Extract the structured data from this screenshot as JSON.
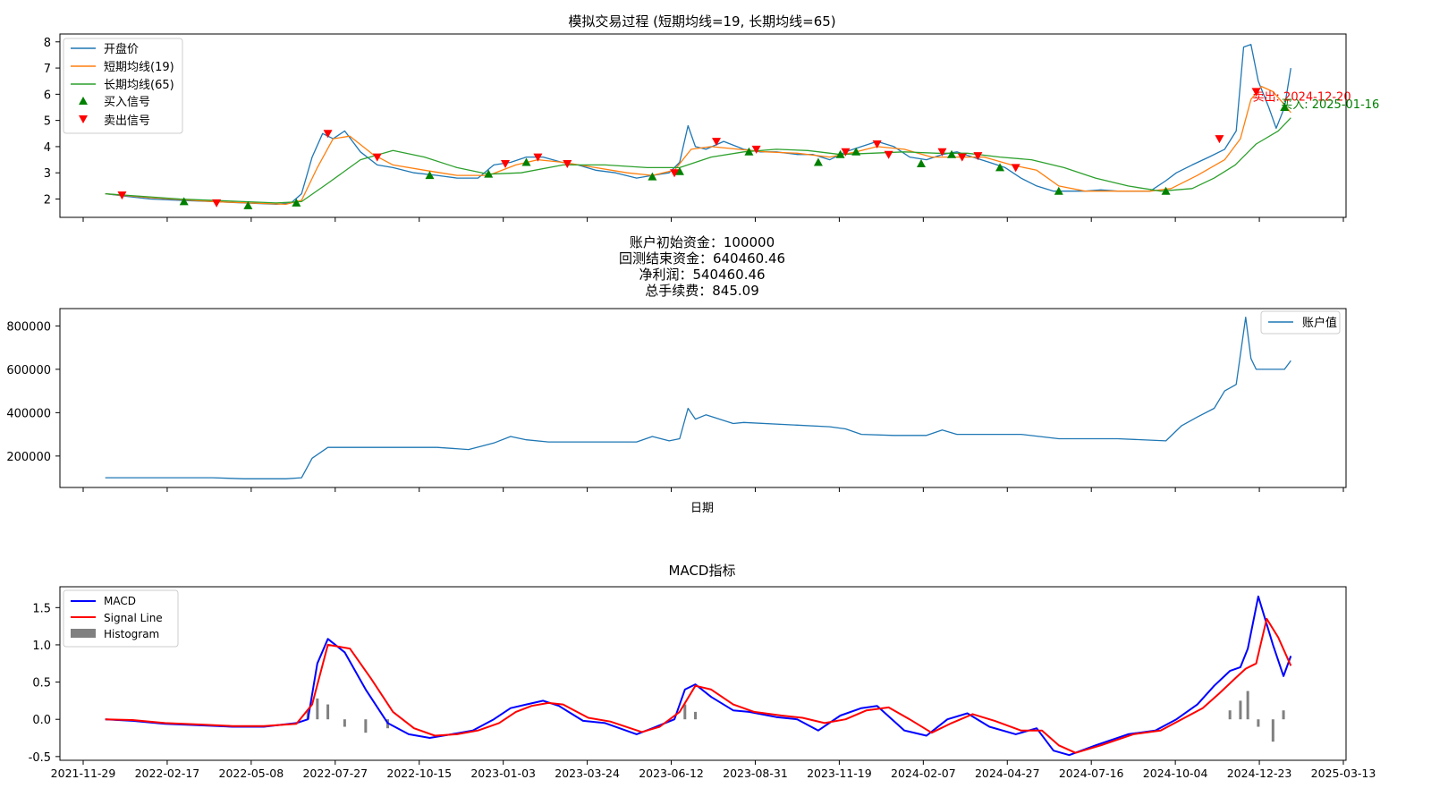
{
  "chart_data": [
    {
      "type": "line",
      "title": "模拟交易过程 (短期均线=19, 长期均线=65)",
      "ylim": [
        1.3,
        8.3
      ],
      "yticks": [
        2,
        3,
        4,
        5,
        6,
        7,
        8
      ],
      "legend": {
        "placement": "top-left",
        "entries": [
          "开盘价",
          "短期均线(19)",
          "长期均线(65)",
          "买入信号",
          "卖出信号"
        ]
      },
      "colors": {
        "open": "#1f77b4",
        "short_ma": "#ff7f0e",
        "long_ma": "#2ca02c",
        "buy": "#008000",
        "sell": "#ff0000"
      },
      "series": [
        {
          "name": "开盘价",
          "key": "open",
          "x": [
            "2021-12-20",
            "2022-01-10",
            "2022-02-01",
            "2022-03-01",
            "2022-04-01",
            "2022-05-01",
            "2022-06-01",
            "2022-06-15",
            "2022-06-25",
            "2022-07-05",
            "2022-07-15",
            "2022-07-25",
            "2022-08-05",
            "2022-08-20",
            "2022-09-05",
            "2022-09-20",
            "2022-10-10",
            "2022-11-01",
            "2022-11-20",
            "2022-12-10",
            "2022-12-25",
            "2023-01-10",
            "2023-01-25",
            "2023-02-10",
            "2023-02-28",
            "2023-03-15",
            "2023-04-01",
            "2023-04-20",
            "2023-05-10",
            "2023-05-25",
            "2023-06-10",
            "2023-06-20",
            "2023-06-28",
            "2023-07-05",
            "2023-07-15",
            "2023-08-01",
            "2023-08-20",
            "2023-09-05",
            "2023-09-20",
            "2023-10-10",
            "2023-10-25",
            "2023-11-10",
            "2023-11-25",
            "2023-12-10",
            "2023-12-25",
            "2024-01-10",
            "2024-01-25",
            "2024-02-10",
            "2024-02-25",
            "2024-03-10",
            "2024-03-25",
            "2024-04-10",
            "2024-04-25",
            "2024-05-10",
            "2024-05-25",
            "2024-06-10",
            "2024-06-25",
            "2024-07-10",
            "2024-07-25",
            "2024-08-10",
            "2024-08-25",
            "2024-09-10",
            "2024-09-25",
            "2024-10-05",
            "2024-10-20",
            "2024-11-05",
            "2024-11-20",
            "2024-12-01",
            "2024-12-08",
            "2024-12-15",
            "2024-12-22",
            "2025-01-01",
            "2025-01-08",
            "2025-01-16",
            "2025-01-22"
          ],
          "y": [
            2.2,
            2.1,
            2.0,
            1.95,
            1.9,
            1.85,
            1.8,
            1.85,
            2.2,
            3.6,
            4.5,
            4.3,
            4.6,
            3.8,
            3.3,
            3.2,
            3.0,
            2.9,
            2.8,
            2.8,
            3.3,
            3.4,
            3.6,
            3.6,
            3.4,
            3.3,
            3.1,
            3.0,
            2.8,
            2.9,
            3.0,
            3.4,
            4.8,
            4.0,
            3.9,
            4.2,
            3.9,
            3.8,
            3.8,
            3.7,
            3.7,
            3.5,
            3.8,
            4.0,
            4.2,
            4.0,
            3.6,
            3.5,
            3.7,
            3.8,
            3.6,
            3.4,
            3.2,
            2.8,
            2.5,
            2.3,
            2.3,
            2.3,
            2.35,
            2.3,
            2.3,
            2.3,
            2.7,
            3.0,
            3.3,
            3.6,
            3.9,
            4.6,
            7.8,
            7.9,
            6.5,
            5.5,
            4.7,
            5.5,
            7.0
          ]
        },
        {
          "name": "短期均线(19)",
          "key": "short",
          "x": [
            "2021-12-20",
            "2022-02-01",
            "2022-04-01",
            "2022-06-10",
            "2022-06-25",
            "2022-07-10",
            "2022-07-25",
            "2022-08-10",
            "2022-09-01",
            "2022-09-20",
            "2022-10-20",
            "2022-11-20",
            "2022-12-20",
            "2023-01-15",
            "2023-02-05",
            "2023-03-01",
            "2023-04-01",
            "2023-05-01",
            "2023-05-25",
            "2023-06-15",
            "2023-07-01",
            "2023-07-20",
            "2023-08-15",
            "2023-09-10",
            "2023-10-10",
            "2023-11-10",
            "2023-12-05",
            "2023-12-25",
            "2024-01-20",
            "2024-02-15",
            "2024-03-10",
            "2024-04-05",
            "2024-05-01",
            "2024-05-25",
            "2024-06-15",
            "2024-07-10",
            "2024-08-10",
            "2024-09-10",
            "2024-09-30",
            "2024-10-25",
            "2024-11-20",
            "2024-12-05",
            "2024-12-15",
            "2024-12-25",
            "2025-01-05",
            "2025-01-16",
            "2025-01-22"
          ],
          "y": [
            2.2,
            2.05,
            1.9,
            1.8,
            1.95,
            3.2,
            4.3,
            4.4,
            3.7,
            3.3,
            3.1,
            2.9,
            2.9,
            3.3,
            3.5,
            3.4,
            3.2,
            3.0,
            2.9,
            3.1,
            3.9,
            4.0,
            3.9,
            3.8,
            3.75,
            3.6,
            3.8,
            4.0,
            3.9,
            3.6,
            3.6,
            3.6,
            3.3,
            3.1,
            2.5,
            2.3,
            2.3,
            2.3,
            2.4,
            2.9,
            3.5,
            4.3,
            5.8,
            6.3,
            6.1,
            5.6,
            5.3
          ]
        },
        {
          "name": "长期均线(65)",
          "key": "long",
          "x": [
            "2021-12-20",
            "2022-03-01",
            "2022-06-01",
            "2022-06-25",
            "2022-07-20",
            "2022-08-20",
            "2022-09-20",
            "2022-10-20",
            "2022-11-20",
            "2022-12-20",
            "2023-01-20",
            "2023-03-01",
            "2023-04-10",
            "2023-05-20",
            "2023-06-20",
            "2023-07-20",
            "2023-08-20",
            "2023-09-20",
            "2023-10-20",
            "2023-11-20",
            "2023-12-20",
            "2024-01-20",
            "2024-02-20",
            "2024-03-20",
            "2024-04-20",
            "2024-05-20",
            "2024-06-20",
            "2024-07-20",
            "2024-08-20",
            "2024-09-20",
            "2024-10-20",
            "2024-11-10",
            "2024-11-30",
            "2024-12-20",
            "2025-01-10",
            "2025-01-22"
          ],
          "y": [
            2.2,
            2.0,
            1.85,
            1.9,
            2.6,
            3.5,
            3.85,
            3.6,
            3.2,
            2.95,
            3.0,
            3.3,
            3.3,
            3.2,
            3.2,
            3.6,
            3.8,
            3.9,
            3.85,
            3.7,
            3.75,
            3.8,
            3.75,
            3.75,
            3.6,
            3.5,
            3.2,
            2.8,
            2.5,
            2.3,
            2.4,
            2.8,
            3.3,
            4.1,
            4.6,
            5.1
          ]
        }
      ],
      "buy_signals": {
        "x": [
          "2022-03-05",
          "2022-05-05",
          "2022-06-20",
          "2022-10-25",
          "2022-12-20",
          "2023-01-25",
          "2023-05-25",
          "2023-06-20",
          "2023-08-25",
          "2023-10-30",
          "2023-11-20",
          "2023-12-05",
          "2024-02-05",
          "2024-03-05",
          "2024-04-20",
          "2024-06-15",
          "2024-09-25",
          "2025-01-16"
        ],
        "y": [
          1.9,
          1.75,
          1.85,
          2.9,
          2.95,
          3.4,
          2.85,
          3.05,
          3.8,
          3.4,
          3.7,
          3.8,
          3.35,
          3.7,
          3.2,
          2.3,
          2.3,
          5.5
        ]
      },
      "sell_signals": {
        "x": [
          "2022-01-05",
          "2022-04-05",
          "2022-07-20",
          "2022-09-05",
          "2023-01-05",
          "2023-02-05",
          "2023-03-05",
          "2023-06-15",
          "2023-07-25",
          "2023-09-01",
          "2023-11-25",
          "2023-12-25",
          "2024-01-05",
          "2024-02-25",
          "2024-03-15",
          "2024-03-30",
          "2024-05-05",
          "2024-11-15",
          "2024-12-20"
        ],
        "y": [
          2.15,
          1.85,
          4.5,
          3.6,
          3.35,
          3.6,
          3.35,
          3.0,
          4.2,
          3.9,
          3.8,
          4.1,
          3.7,
          3.8,
          3.6,
          3.65,
          3.2,
          4.3,
          6.1
        ]
      },
      "annotations": [
        {
          "text": "卖出: 2024-12-20",
          "x": "2024-12-20",
          "y": 5.9,
          "color": "#ff0000"
        },
        {
          "text": "买入: 2025-01-16",
          "x": "2025-01-16",
          "y": 5.6,
          "color": "#008000"
        }
      ]
    },
    {
      "type": "line",
      "title_lines": [
        "账户初始资金：100000",
        "回测结束资金：640460.46",
        "净利润：540460.46",
        "总手续费：845.09"
      ],
      "xlabel": "日期",
      "ylim": [
        55000,
        880000
      ],
      "yticks": [
        200000,
        400000,
        600000,
        800000
      ],
      "legend": {
        "placement": "top-right",
        "entries": [
          "账户值"
        ]
      },
      "colors": {
        "value": "#1f77b4"
      },
      "series": [
        {
          "name": "账户值",
          "x": [
            "2021-12-20",
            "2022-04-01",
            "2022-05-01",
            "2022-06-10",
            "2022-06-25",
            "2022-07-05",
            "2022-07-20",
            "2022-08-10",
            "2022-11-01",
            "2022-12-01",
            "2022-12-25",
            "2023-01-10",
            "2023-01-25",
            "2023-02-15",
            "2023-05-10",
            "2023-05-25",
            "2023-06-10",
            "2023-06-20",
            "2023-06-28",
            "2023-07-05",
            "2023-07-15",
            "2023-08-10",
            "2023-08-20",
            "2023-11-10",
            "2023-11-25",
            "2023-12-10",
            "2024-01-10",
            "2024-02-10",
            "2024-02-25",
            "2024-03-10",
            "2024-05-10",
            "2024-06-15",
            "2024-08-10",
            "2024-09-25",
            "2024-10-10",
            "2024-10-25",
            "2024-11-10",
            "2024-11-20",
            "2024-12-01",
            "2024-12-10",
            "2024-12-15",
            "2024-12-20",
            "2025-01-16",
            "2025-01-22"
          ],
          "y": [
            100000,
            100000,
            95000,
            95000,
            100000,
            190000,
            240000,
            240000,
            240000,
            230000,
            260000,
            290000,
            275000,
            265000,
            265000,
            290000,
            270000,
            280000,
            420000,
            370000,
            390000,
            350000,
            355000,
            335000,
            325000,
            300000,
            295000,
            295000,
            320000,
            300000,
            300000,
            280000,
            280000,
            270000,
            340000,
            380000,
            420000,
            500000,
            530000,
            840000,
            650000,
            600000,
            600000,
            640000
          ]
        }
      ]
    },
    {
      "type": "line",
      "title": "MACD指标",
      "ylim": [
        -0.55,
        1.78
      ],
      "yticks": [
        -0.5,
        0.0,
        0.5,
        1.0,
        1.5
      ],
      "xlim": [
        "2021-11-29",
        "2025-03-13"
      ],
      "xticks": [
        "2021-11-29",
        "2022-02-17",
        "2022-05-08",
        "2022-07-27",
        "2022-10-15",
        "2023-01-03",
        "2023-03-24",
        "2023-06-12",
        "2023-08-31",
        "2023-11-19",
        "2024-02-07",
        "2024-04-27",
        "2024-07-16",
        "2024-10-04",
        "2024-12-23",
        "2025-03-13"
      ],
      "legend": {
        "placement": "top-left",
        "entries": [
          "MACD",
          "Signal Line",
          "Histogram"
        ]
      },
      "colors": {
        "macd": "#0000ff",
        "signal": "#ff0000",
        "hist": "#808080"
      },
      "series": [
        {
          "name": "MACD",
          "key": "macd",
          "x": [
            "2021-12-20",
            "2022-01-15",
            "2022-02-15",
            "2022-03-20",
            "2022-04-20",
            "2022-05-20",
            "2022-06-20",
            "2022-07-01",
            "2022-07-10",
            "2022-07-20",
            "2022-08-05",
            "2022-08-25",
            "2022-09-15",
            "2022-10-05",
            "2022-10-25",
            "2022-11-15",
            "2022-12-05",
            "2022-12-25",
            "2023-01-10",
            "2023-01-25",
            "2023-02-10",
            "2023-02-25",
            "2023-03-20",
            "2023-04-10",
            "2023-05-10",
            "2023-05-25",
            "2023-06-15",
            "2023-06-25",
            "2023-07-05",
            "2023-07-20",
            "2023-08-10",
            "2023-08-25",
            "2023-09-20",
            "2023-10-10",
            "2023-10-30",
            "2023-11-20",
            "2023-12-10",
            "2023-12-25",
            "2024-01-20",
            "2024-02-10",
            "2024-03-01",
            "2024-03-20",
            "2024-04-10",
            "2024-05-05",
            "2024-05-25",
            "2024-06-10",
            "2024-06-25",
            "2024-07-20",
            "2024-08-20",
            "2024-09-15",
            "2024-10-05",
            "2024-10-25",
            "2024-11-10",
            "2024-11-25",
            "2024-12-05",
            "2024-12-12",
            "2024-12-22",
            "2025-01-05",
            "2025-01-15",
            "2025-01-22"
          ],
          "y": [
            0.0,
            -0.02,
            -0.06,
            -0.08,
            -0.1,
            -0.1,
            -0.05,
            0.0,
            0.75,
            1.08,
            0.9,
            0.4,
            -0.05,
            -0.2,
            -0.25,
            -0.2,
            -0.15,
            0.0,
            0.15,
            0.2,
            0.25,
            0.18,
            -0.02,
            -0.05,
            -0.2,
            -0.12,
            0.0,
            0.4,
            0.47,
            0.3,
            0.12,
            0.1,
            0.03,
            0.0,
            -0.15,
            0.05,
            0.15,
            0.18,
            -0.15,
            -0.22,
            0.0,
            0.08,
            -0.1,
            -0.2,
            -0.12,
            -0.42,
            -0.48,
            -0.35,
            -0.2,
            -0.15,
            0.0,
            0.2,
            0.45,
            0.65,
            0.7,
            0.95,
            1.65,
            1.0,
            0.58,
            0.85
          ]
        },
        {
          "name": "Signal Line",
          "key": "signal",
          "x": [
            "2021-12-20",
            "2022-01-15",
            "2022-02-15",
            "2022-03-20",
            "2022-04-20",
            "2022-05-20",
            "2022-06-20",
            "2022-07-05",
            "2022-07-20",
            "2022-08-10",
            "2022-08-30",
            "2022-09-20",
            "2022-10-10",
            "2022-10-30",
            "2022-11-20",
            "2022-12-10",
            "2022-12-30",
            "2023-01-15",
            "2023-01-30",
            "2023-02-15",
            "2023-03-01",
            "2023-03-25",
            "2023-04-15",
            "2023-05-15",
            "2023-06-01",
            "2023-06-20",
            "2023-07-05",
            "2023-07-20",
            "2023-08-10",
            "2023-08-30",
            "2023-09-25",
            "2023-10-15",
            "2023-11-05",
            "2023-11-25",
            "2023-12-15",
            "2024-01-05",
            "2024-01-25",
            "2024-02-15",
            "2024-03-05",
            "2024-03-25",
            "2024-04-15",
            "2024-05-10",
            "2024-05-30",
            "2024-06-15",
            "2024-07-01",
            "2024-07-25",
            "2024-08-25",
            "2024-09-20",
            "2024-10-10",
            "2024-10-30",
            "2024-11-15",
            "2024-11-30",
            "2024-12-10",
            "2024-12-20",
            "2024-12-30",
            "2025-01-10",
            "2025-01-22"
          ],
          "y": [
            0.0,
            -0.01,
            -0.05,
            -0.07,
            -0.09,
            -0.09,
            -0.06,
            0.2,
            1.0,
            0.95,
            0.55,
            0.1,
            -0.12,
            -0.22,
            -0.2,
            -0.15,
            -0.05,
            0.1,
            0.18,
            0.22,
            0.2,
            0.02,
            -0.03,
            -0.17,
            -0.1,
            0.1,
            0.45,
            0.4,
            0.2,
            0.1,
            0.05,
            0.02,
            -0.05,
            0.0,
            0.12,
            0.16,
            0.0,
            -0.18,
            -0.05,
            0.07,
            -0.02,
            -0.15,
            -0.15,
            -0.35,
            -0.45,
            -0.35,
            -0.2,
            -0.15,
            0.0,
            0.15,
            0.35,
            0.55,
            0.68,
            0.75,
            1.35,
            1.1,
            0.72
          ]
        }
      ],
      "histogram": {
        "x": [
          "2022-07-01",
          "2022-07-10",
          "2022-07-20",
          "2022-08-05",
          "2022-08-25",
          "2022-09-15",
          "2023-06-25",
          "2023-07-05",
          "2024-11-25",
          "2024-12-05",
          "2024-12-12",
          "2024-12-22",
          "2025-01-05",
          "2025-01-15"
        ],
        "y": [
          0.12,
          0.28,
          0.2,
          -0.1,
          -0.18,
          -0.12,
          0.2,
          0.1,
          0.12,
          0.25,
          0.38,
          -0.1,
          -0.3,
          0.12
        ]
      }
    }
  ]
}
